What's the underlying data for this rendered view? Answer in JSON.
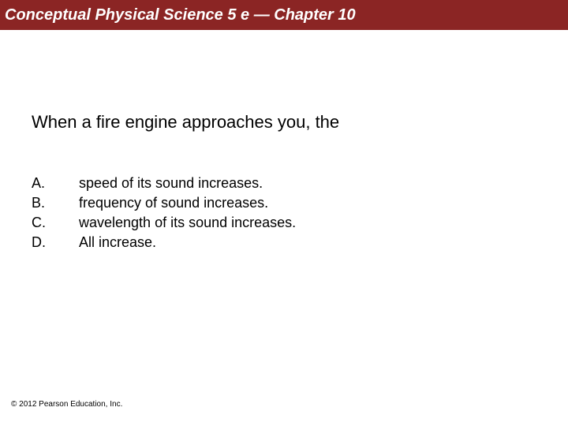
{
  "header": {
    "title": "Conceptual Physical Science 5 e — Chapter 10",
    "bg_color": "#8b2524",
    "text_color": "#ffffff",
    "fontsize": 20
  },
  "question": {
    "text": "When a fire engine approaches you, the",
    "fontsize": 22,
    "color": "#000000"
  },
  "options": [
    {
      "letter": "A.",
      "text": "speed of its sound increases."
    },
    {
      "letter": "B.",
      "text": "frequency of sound increases."
    },
    {
      "letter": "C.",
      "text": "wavelength of its sound increases."
    },
    {
      "letter": "D.",
      "text": "All increase."
    }
  ],
  "option_style": {
    "fontsize": 18,
    "color": "#000000",
    "letter_col_width": 60
  },
  "footer": {
    "text": "© 2012 Pearson Education, Inc.",
    "fontsize": 10,
    "color": "#000000"
  },
  "background_color": "#ffffff"
}
